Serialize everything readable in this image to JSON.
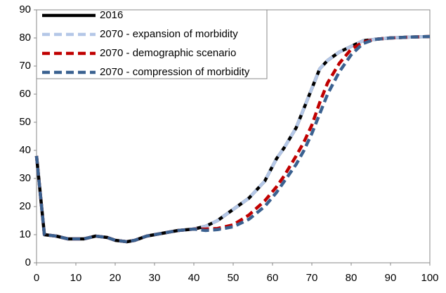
{
  "chart_data": {
    "type": "line",
    "x": [
      0,
      2,
      5,
      8,
      12,
      15,
      18,
      20,
      23,
      25,
      28,
      32,
      36,
      40,
      43,
      46,
      50,
      54,
      58,
      61,
      63,
      66,
      68,
      70,
      72,
      74,
      77,
      80,
      83,
      86,
      90,
      95,
      100
    ],
    "series": [
      {
        "name": "2016",
        "color": "#000000",
        "dash": false,
        "values": [
          38,
          10,
          9.5,
          8.5,
          8.5,
          9.5,
          9,
          8,
          7.5,
          8,
          9.5,
          10.5,
          11.5,
          12,
          13,
          15,
          19,
          23,
          29,
          37,
          41,
          48,
          55,
          62,
          69,
          72,
          75,
          77,
          79,
          79.5,
          80,
          80.3,
          80.5
        ]
      },
      {
        "name": "2070 - expansion of morbidity",
        "color": "#b4c7e7",
        "dash": true,
        "values": [
          38,
          10,
          9.5,
          8.5,
          8.5,
          9.5,
          9,
          8,
          7.5,
          8,
          9.5,
          10.5,
          11.5,
          12,
          13,
          15,
          19,
          23,
          29,
          37,
          41,
          48,
          55,
          62,
          69,
          72,
          75,
          77,
          79,
          79.5,
          80,
          80.3,
          80.5
        ]
      },
      {
        "name": "2070 - demographic scenario",
        "color": "#c00000",
        "dash": true,
        "values": [
          38,
          10,
          9.5,
          8.5,
          8.5,
          9.5,
          9,
          8,
          7.5,
          8,
          9.5,
          10.5,
          11.5,
          12,
          12,
          12.2,
          13.5,
          17,
          22,
          27,
          31,
          38,
          43,
          49,
          57,
          64,
          71,
          76,
          78.5,
          79.5,
          80,
          80.3,
          80.5
        ]
      },
      {
        "name": "2070 - compression of morbidity",
        "color": "#3a6190",
        "dash": true,
        "values": [
          38,
          10,
          9.5,
          8.5,
          8.5,
          9.5,
          9,
          8,
          7.5,
          8,
          9.5,
          10.5,
          11.5,
          12,
          11.5,
          11.8,
          12.8,
          15.5,
          20,
          25,
          29,
          35,
          40,
          46,
          53,
          60,
          68,
          74,
          78,
          79.5,
          80,
          80.3,
          80.5
        ]
      }
    ],
    "xlim": [
      0,
      100
    ],
    "xticks": [
      0,
      10,
      20,
      30,
      40,
      50,
      60,
      70,
      80,
      90,
      100
    ],
    "ylim": [
      0,
      90
    ],
    "yticks": [
      0,
      10,
      20,
      30,
      40,
      50,
      60,
      70,
      80,
      90
    ],
    "grid": false,
    "legend": "upper left"
  }
}
